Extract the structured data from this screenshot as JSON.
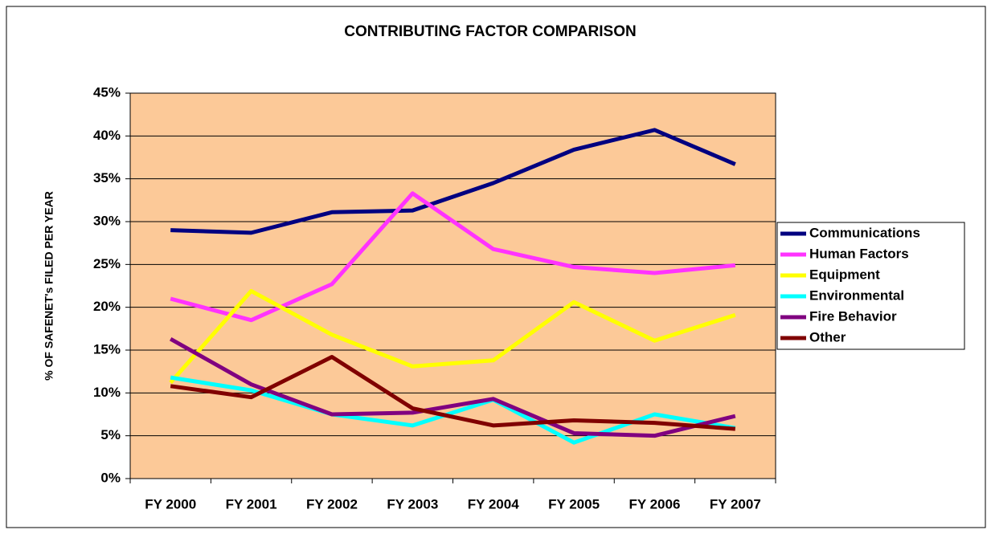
{
  "chart_data": {
    "type": "line",
    "title": "CONTRIBUTING FACTOR COMPARISON",
    "y_label": "% OF SAFENET's FILED PER YEAR",
    "categories": [
      "FY 2000",
      "FY 2001",
      "FY 2002",
      "FY 2003",
      "FY 2004",
      "FY 2005",
      "FY 2006",
      "FY 2007"
    ],
    "series": [
      {
        "name": "Communications",
        "color": "#000080",
        "values": [
          29.0,
          28.7,
          31.1,
          31.3,
          34.5,
          38.4,
          40.7,
          36.7
        ]
      },
      {
        "name": "Human Factors",
        "color": "#ff33ff",
        "values": [
          21.0,
          18.5,
          22.7,
          33.3,
          26.8,
          24.7,
          24.0,
          24.9
        ]
      },
      {
        "name": "Equipment",
        "color": "#ffff00",
        "values": [
          11.2,
          21.9,
          16.8,
          13.1,
          13.8,
          20.6,
          16.1,
          19.1
        ]
      },
      {
        "name": "Environmental",
        "color": "#00ffff",
        "values": [
          11.8,
          10.3,
          7.5,
          6.2,
          9.2,
          4.2,
          7.5,
          5.9
        ]
      },
      {
        "name": "Fire Behavior",
        "color": "#800080",
        "values": [
          16.3,
          11.0,
          7.5,
          7.7,
          9.3,
          5.3,
          5.0,
          7.3
        ]
      },
      {
        "name": "Other",
        "color": "#800000",
        "values": [
          10.8,
          9.5,
          14.2,
          8.2,
          6.2,
          6.8,
          6.5,
          5.8
        ]
      }
    ],
    "ylim": [
      0,
      45
    ],
    "yticks": [
      {
        "value": 0,
        "label": "0%"
      },
      {
        "value": 5,
        "label": "5%"
      },
      {
        "value": 10,
        "label": "10%"
      },
      {
        "value": 15,
        "label": "15%"
      },
      {
        "value": 20,
        "label": "20%"
      },
      {
        "value": 25,
        "label": "25%"
      },
      {
        "value": 30,
        "label": "30%"
      },
      {
        "value": 35,
        "label": "35%"
      },
      {
        "value": 40,
        "label": "40%"
      },
      {
        "value": 45,
        "label": "45%"
      }
    ],
    "grid": true,
    "plot_background": "#fcc998",
    "legend": "right"
  }
}
